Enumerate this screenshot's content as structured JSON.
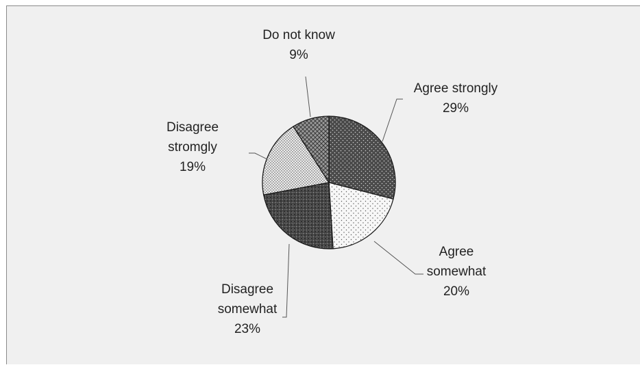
{
  "chart_data": {
    "type": "pie",
    "title": "",
    "slices": [
      {
        "label": [
          "Agree strongly"
        ],
        "percent_label": "29%",
        "value": 29,
        "color": "#4a4a4a",
        "pattern": "dots-dark"
      },
      {
        "label": [
          "Agree",
          "somewhat"
        ],
        "percent_label": "20%",
        "value": 20,
        "color": "#f2f2f2",
        "pattern": "dots-light"
      },
      {
        "label": [
          "Disagree",
          "somewhat"
        ],
        "percent_label": "23%",
        "value": 23,
        "color": "#4a4a4a",
        "pattern": "crosshatch-dark"
      },
      {
        "label": [
          "Disagree",
          "stromgly"
        ],
        "percent_label": "19%",
        "value": 19,
        "color": "#e6e6e6",
        "pattern": "dots-dense"
      },
      {
        "label": [
          "Do not know"
        ],
        "percent_label": "9%",
        "value": 9,
        "color": "#7a7a7a",
        "pattern": "diamond-grid"
      }
    ],
    "start": "12 o'clock",
    "direction": "clockwise",
    "legend": "none"
  },
  "colors": {
    "background": "#f0f0f0",
    "slice_outline": "#1a1a1a",
    "text": "#222222"
  }
}
